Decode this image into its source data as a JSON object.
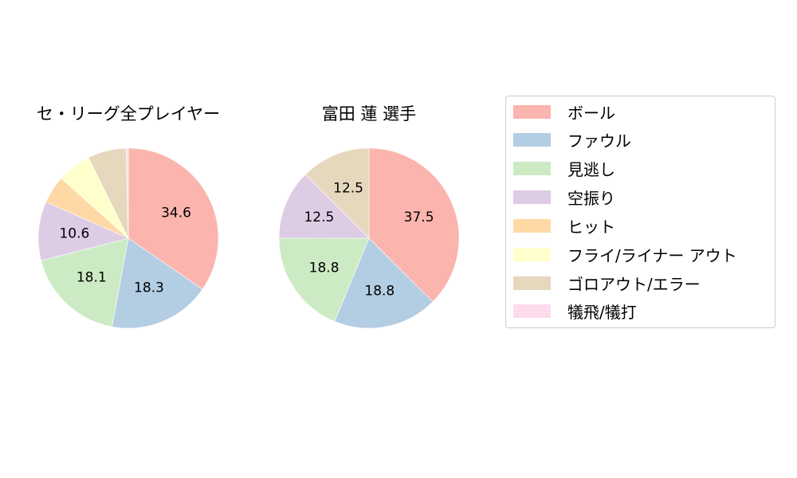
{
  "chart_data": [
    {
      "type": "pie",
      "title": "セ・リーグ全プレイヤー",
      "categories": [
        "ボール",
        "ファウル",
        "見逃し",
        "空振り",
        "ヒット",
        "フライ/ライナー アウト",
        "ゴロアウト/エラー",
        "犠飛/犠打"
      ],
      "values": [
        34.6,
        18.3,
        18.1,
        10.6,
        5.0,
        6.1,
        6.9,
        0.4
      ],
      "labels_shown": [
        "34.6",
        "18.3",
        "18.1",
        "10.6",
        "",
        "",
        "",
        ""
      ],
      "colors": [
        "#fbb4ae",
        "#b3cde3",
        "#ccebc5",
        "#decbe4",
        "#fed9a6",
        "#ffffcc",
        "#e5d8bd",
        "#fddaec"
      ],
      "start_angle": 90,
      "direction": "clockwise"
    },
    {
      "type": "pie",
      "title": "富田 蓮  選手",
      "categories": [
        "ボール",
        "ファウル",
        "見逃し",
        "空振り",
        "ヒット",
        "フライ/ライナー アウト",
        "ゴロアウト/エラー",
        "犠飛/犠打"
      ],
      "values": [
        37.5,
        18.8,
        18.8,
        12.5,
        0,
        0,
        12.5,
        0
      ],
      "labels_shown": [
        "37.5",
        "18.8",
        "18.8",
        "12.5",
        "",
        "",
        "12.5",
        ""
      ],
      "colors": [
        "#fbb4ae",
        "#b3cde3",
        "#ccebc5",
        "#decbe4",
        "#fed9a6",
        "#ffffcc",
        "#e5d8bd",
        "#fddaec"
      ],
      "start_angle": 90,
      "direction": "clockwise"
    }
  ],
  "titles": {
    "left": "セ・リーグ全プレイヤー",
    "right": "富田 蓮  選手"
  },
  "legend": {
    "items": [
      {
        "label": "ボール",
        "color": "#fbb4ae"
      },
      {
        "label": "ファウル",
        "color": "#b3cde3"
      },
      {
        "label": "見逃し",
        "color": "#ccebc5"
      },
      {
        "label": "空振り",
        "color": "#decbe4"
      },
      {
        "label": "ヒット",
        "color": "#fed9a6"
      },
      {
        "label": "フライ/ライナー アウト",
        "color": "#ffffcc"
      },
      {
        "label": "ゴロアウト/エラー",
        "color": "#e5d8bd"
      },
      {
        "label": "犠飛/犠打",
        "color": "#fddaec"
      }
    ]
  }
}
